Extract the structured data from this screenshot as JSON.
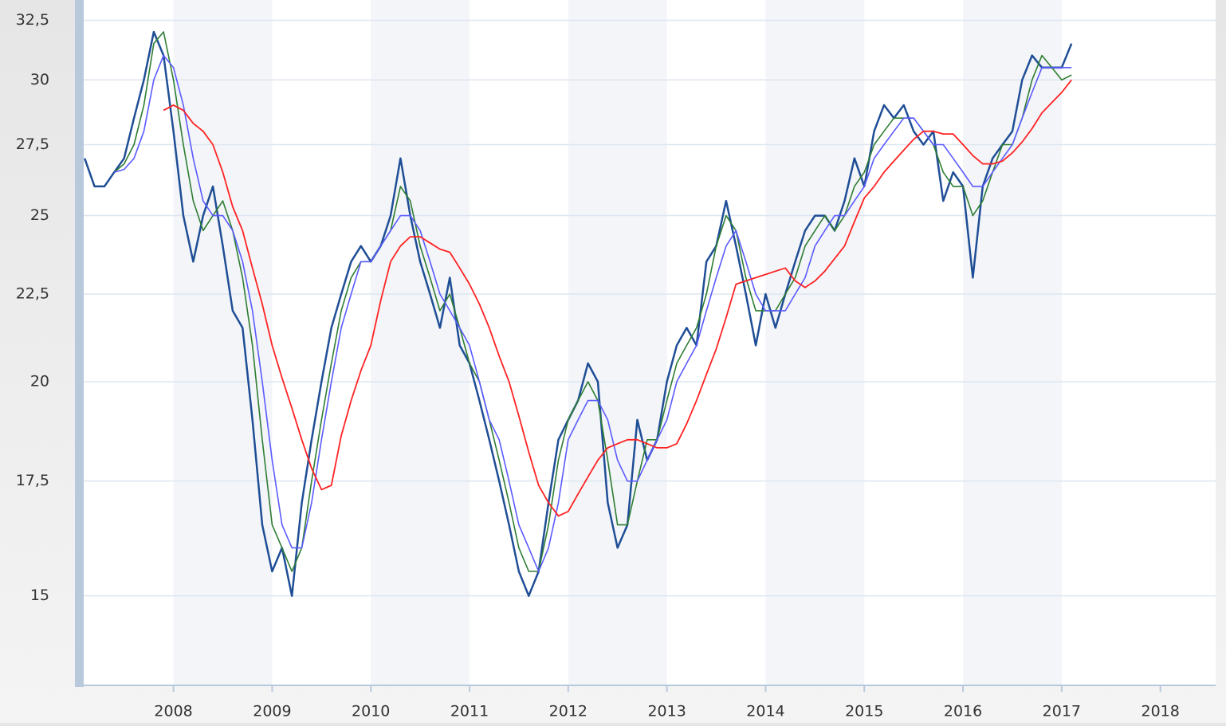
{
  "chart_data": {
    "type": "line",
    "log_y": true,
    "grid": true,
    "x": [
      2007.1,
      2007.2,
      2007.3,
      2007.4,
      2007.5,
      2007.6,
      2007.7,
      2007.8,
      2007.9,
      2008.0,
      2008.1,
      2008.2,
      2008.3,
      2008.4,
      2008.5,
      2008.6,
      2008.7,
      2008.8,
      2008.9,
      2009.0,
      2009.1,
      2009.2,
      2009.3,
      2009.4,
      2009.5,
      2009.6,
      2009.7,
      2009.8,
      2009.9,
      2010.0,
      2010.1,
      2010.2,
      2010.3,
      2010.4,
      2010.5,
      2010.6,
      2010.7,
      2010.8,
      2010.9,
      2011.0,
      2011.1,
      2011.2,
      2011.3,
      2011.4,
      2011.5,
      2011.6,
      2011.7,
      2011.8,
      2011.9,
      2012.0,
      2012.1,
      2012.2,
      2012.3,
      2012.4,
      2012.5,
      2012.6,
      2012.7,
      2012.8,
      2012.9,
      2013.0,
      2013.1,
      2013.2,
      2013.3,
      2013.4,
      2013.5,
      2013.6,
      2013.7,
      2013.8,
      2013.9,
      2014.0,
      2014.1,
      2014.2,
      2014.3,
      2014.4,
      2014.5,
      2014.6,
      2014.7,
      2014.8,
      2014.9,
      2015.0,
      2015.1,
      2015.2,
      2015.3,
      2015.4,
      2015.5,
      2015.6,
      2015.7,
      2015.8,
      2015.9,
      2016.0,
      2016.1,
      2016.2,
      2016.3,
      2016.4,
      2016.5,
      2016.6,
      2016.7,
      2016.8,
      2016.9,
      2017.0,
      2017.1
    ],
    "series": [
      {
        "color": "#1f4e96",
        "width": 2.5,
        "values": [
          27,
          26,
          26,
          26.5,
          27,
          28.5,
          30,
          32,
          31,
          28,
          25,
          23.5,
          25,
          26,
          24,
          22,
          21.5,
          19,
          16.5,
          15.5,
          16,
          15,
          17,
          18.5,
          20,
          21.5,
          22.5,
          23.5,
          24,
          23.5,
          24,
          25,
          27,
          25,
          23.5,
          22.5,
          21.5,
          23,
          21,
          20.5,
          19.5,
          18.5,
          17.5,
          16.5,
          15.5,
          15,
          15.5,
          17,
          18.5,
          19,
          19.5,
          20.5,
          20,
          17,
          16,
          16.5,
          19,
          18,
          18.5,
          20,
          21,
          21.5,
          21,
          23.5,
          24,
          25.5,
          24,
          22.5,
          21,
          22.5,
          21.5,
          22.5,
          23.5,
          24.5,
          25,
          25,
          24.5,
          25.5,
          27,
          26,
          28,
          29,
          28.5,
          29,
          28,
          27.5,
          28,
          25.5,
          26.5,
          26,
          23,
          26,
          27,
          27.5,
          28,
          30,
          31,
          30.5,
          30.5,
          30.5,
          31.5
        ]
      },
      {
        "color": "#2e7d32",
        "width": 1.6,
        "values": [
          null,
          null,
          null,
          26.5,
          26.8,
          27.5,
          29,
          31.5,
          32,
          30,
          27.5,
          25.5,
          24.5,
          25,
          25.5,
          24.5,
          23,
          21,
          18.5,
          16.5,
          16,
          15.5,
          16,
          17.5,
          19,
          20.5,
          22,
          23,
          23.5,
          23.5,
          24,
          24.5,
          26,
          25.5,
          24,
          23,
          22,
          22.5,
          21.5,
          20.5,
          20,
          19,
          18,
          17,
          16,
          15.5,
          15.5,
          16.5,
          18,
          19,
          19.5,
          20,
          19.5,
          18,
          16.5,
          16.5,
          17.5,
          18.5,
          18.5,
          19.5,
          20.5,
          21,
          21.5,
          22.5,
          24,
          25,
          24.5,
          23,
          22,
          22,
          22,
          22.5,
          23,
          24,
          24.5,
          25,
          24.5,
          25,
          26,
          26.5,
          27.5,
          28,
          28.5,
          28.5,
          28.5,
          28,
          27.5,
          26.5,
          26,
          26,
          25,
          25.5,
          26.5,
          27.5,
          27.5,
          28.5,
          30,
          31,
          30.5,
          30,
          30.2
        ]
      },
      {
        "color": "#5a5aff",
        "width": 1.6,
        "values": [
          null,
          null,
          null,
          26.5,
          26.6,
          27,
          28,
          30,
          31,
          30.5,
          29,
          27,
          25.5,
          25,
          25,
          24.5,
          23.5,
          22,
          20,
          18,
          16.5,
          16,
          16,
          17,
          18.5,
          20,
          21.5,
          22.5,
          23.5,
          23.5,
          24,
          24.5,
          25,
          25,
          24.5,
          23.5,
          22.5,
          22,
          21.5,
          21,
          20,
          19,
          18.5,
          17.5,
          16.5,
          16,
          15.5,
          16,
          17,
          18.5,
          19,
          19.5,
          19.5,
          19,
          18,
          17.5,
          17.5,
          18,
          18.5,
          19,
          20,
          20.5,
          21,
          22,
          23,
          24,
          24.5,
          23.5,
          22.5,
          22,
          22,
          22,
          22.5,
          23,
          24,
          24.5,
          25,
          25,
          25.5,
          26,
          27,
          27.5,
          28,
          28.5,
          28.5,
          28,
          27.5,
          27.5,
          27,
          26.5,
          26,
          26,
          26.5,
          27,
          27.5,
          28.5,
          29.5,
          30.5,
          30.5,
          30.5,
          30.5
        ]
      },
      {
        "color": "#ff2222",
        "width": 1.8,
        "values": [
          null,
          null,
          null,
          null,
          null,
          null,
          null,
          null,
          28.8,
          29,
          28.8,
          28.3,
          28,
          27.5,
          26.5,
          25.3,
          24.5,
          23.3,
          22.2,
          21,
          20.1,
          19.3,
          18.5,
          17.8,
          17.3,
          17.4,
          18.6,
          19.5,
          20.3,
          21,
          22.3,
          23.5,
          24,
          24.3,
          24.3,
          24.1,
          23.9,
          23.8,
          23.3,
          22.8,
          22.2,
          21.5,
          20.7,
          20,
          19.1,
          18.2,
          17.4,
          17,
          16.7,
          16.8,
          17.2,
          17.6,
          18,
          18.3,
          18.4,
          18.5,
          18.5,
          18.4,
          18.3,
          18.3,
          18.4,
          18.9,
          19.5,
          20.2,
          20.9,
          21.8,
          22.8,
          22.9,
          23,
          23.1,
          23.2,
          23.3,
          22.9,
          22.7,
          22.9,
          23.2,
          23.6,
          24,
          24.8,
          25.6,
          26,
          26.5,
          26.9,
          27.3,
          27.7,
          28,
          28,
          27.9,
          27.9,
          27.5,
          27.1,
          26.8,
          26.8,
          26.9,
          27.2,
          27.6,
          28.1,
          28.7,
          29.1,
          29.5,
          30
        ]
      }
    ],
    "xlim": [
      2007.05,
      2018.56
    ],
    "xticks": [
      2008,
      2009,
      2010,
      2011,
      2012,
      2013,
      2014,
      2015,
      2016,
      2017,
      2018
    ],
    "ylim": [
      13.3,
      33.4
    ],
    "yticks": [
      15,
      {
        "value": 17.5,
        "label": "17,5"
      },
      20,
      {
        "value": 22.5,
        "label": "22,5"
      },
      25,
      {
        "value": 27.5,
        "label": "27,5"
      },
      30,
      {
        "value": 32.5,
        "label": "32,5"
      }
    ],
    "grid_color": "#dde6f0",
    "band_color": "#f3f5f8"
  }
}
